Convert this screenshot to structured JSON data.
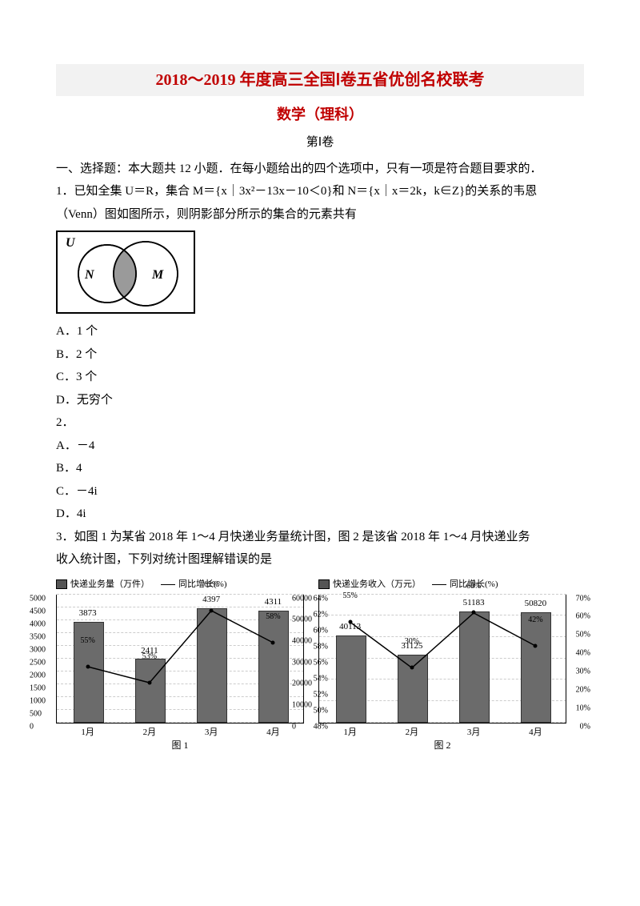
{
  "header": {
    "title_main": "2018～2019 年度高三全国Ⅰ卷五省优创名校联考",
    "title_sub": "数学（理科）",
    "section": "第Ⅰ卷"
  },
  "instructions": "一、选择题：本大题共 12 小题．在每小题给出的四个选项中，只有一项是符合题目要求的．",
  "q1": {
    "stem_a": "1．已知全集 U＝R，集合 M＝{x｜3x²－13x－10＜0}和 N＝{x｜x＝2k，k∈Z}的关系的韦恩",
    "stem_b": "（Venn）图如图所示，则阴影部分所示的集合的元素共有",
    "venn": {
      "U_label": "U",
      "N_label": "N",
      "M_label": "M",
      "border_color": "#000000",
      "bg": "#ffffff",
      "circle_stroke": "#000000",
      "shade_fill": "#9a9a9a"
    },
    "options": {
      "A": "A．1 个",
      "B": "B．2 个",
      "C": "C．3 个",
      "D": "D．无穷个"
    }
  },
  "q2": {
    "stem": "2．",
    "options": {
      "A": "A．－4",
      "B": "B．4",
      "C": "C．－4i",
      "D": "D．4i"
    }
  },
  "q3": {
    "stem_a": "3．如图 1 为某省 2018 年 1～4 月快递业务量统计图，图 2 是该省 2018 年 1～4 月快递业务",
    "stem_b": "收入统计图，下列对统计图理解错误的是",
    "chart1": {
      "type": "bar+line",
      "legend_bar": "快递业务量（万件）",
      "legend_line": "同比增长(%)",
      "categories": [
        "1月",
        "2月",
        "3月",
        "4月"
      ],
      "bar_values": [
        3873,
        2411,
        4397,
        4311
      ],
      "bar_max": 5000,
      "line_values_pct": [
        55,
        53,
        62,
        58
      ],
      "pct_labels": [
        "55%",
        "53%",
        "62%",
        "58%"
      ],
      "pct_min": 48,
      "pct_max": 64,
      "y_left_ticks": [
        0,
        500,
        1000,
        1500,
        2000,
        2500,
        3000,
        3500,
        4000,
        4500,
        5000
      ],
      "y_right_ticks": [
        "48%",
        "50%",
        "52%",
        "54%",
        "56%",
        "58%",
        "60%",
        "62%",
        "64%"
      ],
      "caption": "图 1",
      "bar_color": "#6b6b6b",
      "bg": "#ffffff"
    },
    "chart2": {
      "type": "bar+line",
      "legend_bar": "快递业务收入（万元）",
      "legend_line": "同比增长(%)",
      "categories": [
        "1月",
        "2月",
        "3月",
        "4月"
      ],
      "bar_values": [
        40113,
        31125,
        51183,
        50820
      ],
      "bar_max": 60000,
      "line_values_pct": [
        55,
        30,
        60,
        42
      ],
      "pct_labels": [
        "55%",
        "30%",
        "60%",
        "42%"
      ],
      "pct_min": 0,
      "pct_max": 70,
      "y_left_ticks": [
        0,
        10000,
        20000,
        30000,
        40000,
        50000,
        60000
      ],
      "y_right_ticks": [
        "0%",
        "10%",
        "20%",
        "30%",
        "40%",
        "50%",
        "60%",
        "70%"
      ],
      "caption": "图 2",
      "bar_color": "#6b6b6b",
      "bg": "#ffffff"
    }
  }
}
